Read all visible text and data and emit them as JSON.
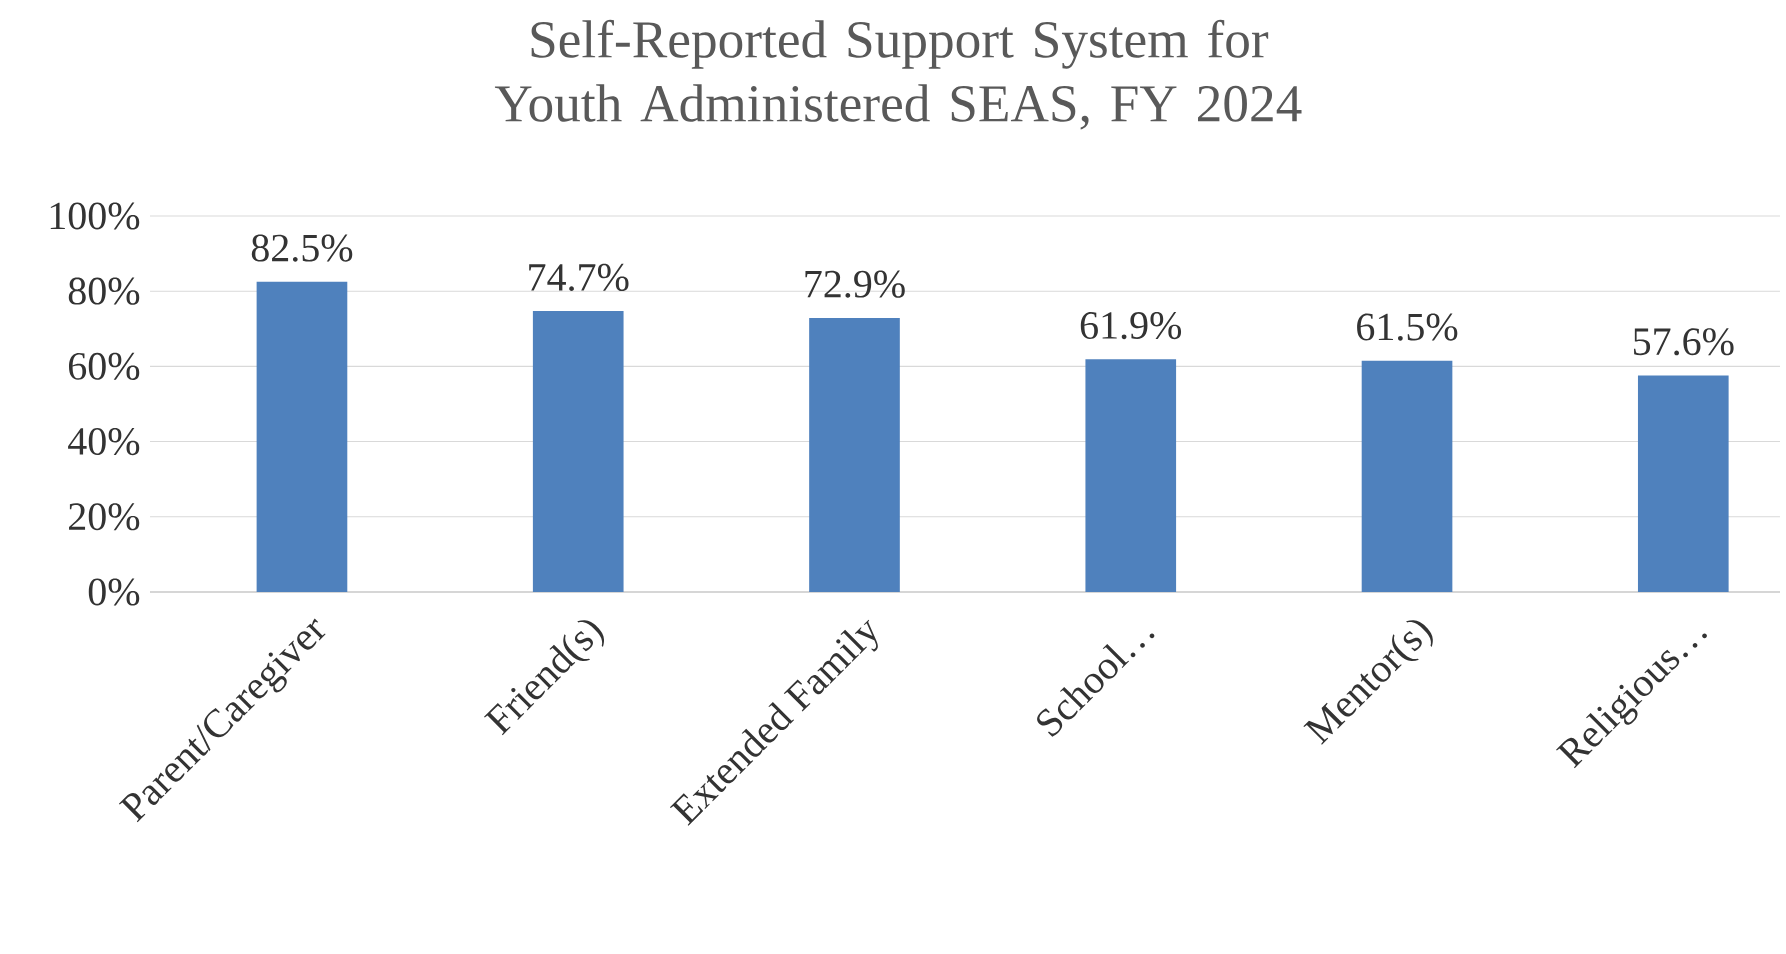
{
  "chart_data": {
    "type": "bar",
    "title": "Self-Reported Support System for Youth Administered SEAS, FY 2024",
    "categories": [
      "Parent/Caregiver",
      "Friend(s)",
      "Extended Family",
      "School…",
      "Mentor(s)",
      "Religious…"
    ],
    "values": [
      82.5,
      74.7,
      72.9,
      61.9,
      61.5,
      57.6
    ],
    "value_labels": [
      "82.5%",
      "74.7%",
      "72.9%",
      "61.9%",
      "61.5%",
      "57.6%"
    ],
    "color": "#4f81bd",
    "ylim": [
      0,
      100
    ],
    "yticks": [
      {
        "value": 0,
        "label": "0%"
      },
      {
        "value": 20,
        "label": "20%"
      },
      {
        "value": 40,
        "label": "40%"
      },
      {
        "value": 60,
        "label": "60%"
      },
      {
        "value": 80,
        "label": "80%"
      },
      {
        "value": 100,
        "label": "100%"
      }
    ],
    "grid": "y"
  }
}
